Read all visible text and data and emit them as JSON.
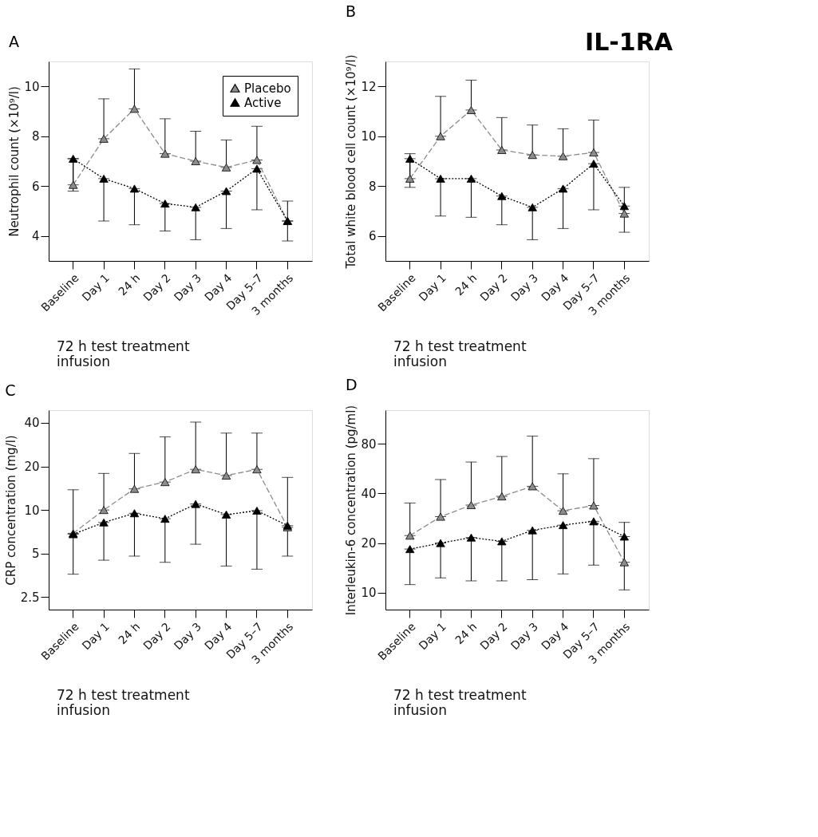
{
  "chart_data": [
    {
      "type": "line",
      "title": "A",
      "ylabel": "Neutrophil count (×10⁹/l)",
      "categories": [
        "Baseline",
        "Day 1",
        "24 h",
        "Day 2",
        "Day 3",
        "Day 4",
        "Day 5–7",
        "3 months"
      ],
      "ylim": [
        3,
        11
      ],
      "yticks": [
        4,
        6,
        8,
        10
      ],
      "legend": "top right",
      "marker": "triangle",
      "series": [
        {
          "name": "Placebo",
          "color": "#8c8c8c",
          "line_style": "dashed",
          "values": [
            6.05,
            7.9,
            9.1,
            7.3,
            7.0,
            6.75,
            7.05,
            4.6
          ],
          "errors": [
            [
              6.05,
              7.1
            ],
            [
              7.9,
              9.5
            ],
            [
              9.1,
              10.7
            ],
            [
              7.3,
              8.7
            ],
            [
              7.0,
              8.2
            ],
            [
              6.75,
              7.85
            ],
            [
              7.05,
              8.4
            ],
            [
              4.6,
              5.4
            ]
          ]
        },
        {
          "name": "Active",
          "color": "#000000",
          "line_style": "dotted",
          "values": [
            7.1,
            6.3,
            5.9,
            5.3,
            5.15,
            5.8,
            6.7,
            4.6
          ],
          "errors": [
            [
              5.8,
              7.1
            ],
            [
              4.6,
              6.3
            ],
            [
              4.45,
              5.9
            ],
            [
              4.2,
              5.3
            ],
            [
              3.85,
              5.15
            ],
            [
              4.3,
              5.8
            ],
            [
              5.05,
              6.7
            ],
            [
              3.8,
              4.6
            ]
          ]
        }
      ],
      "annotations": [
        "72 h test treatment\ninfusion"
      ]
    },
    {
      "type": "line",
      "title": "B",
      "ylabel": "Total white blood cell count (×10⁹/l)",
      "annotations": [
        "72 h test treatment\ninfusion",
        "IL-1RA"
      ],
      "categories": [
        "Baseline",
        "Day 1",
        "24 h",
        "Day 2",
        "Day 3",
        "Day 4",
        "Day 5–7",
        "3 months"
      ],
      "ylim": [
        5,
        13
      ],
      "yticks": [
        6,
        8,
        10,
        12
      ],
      "marker": "triangle",
      "series": [
        {
          "color": "#8c8c8c",
          "line_style": "dashed",
          "values": [
            8.3,
            10.0,
            11.05,
            9.45,
            9.25,
            9.2,
            9.35,
            6.9
          ],
          "errors": [
            [
              8.3,
              9.3
            ],
            [
              10.0,
              11.6
            ],
            [
              11.05,
              12.25
            ],
            [
              9.45,
              10.75
            ],
            [
              9.25,
              10.45
            ],
            [
              9.2,
              10.3
            ],
            [
              9.35,
              10.65
            ],
            [
              6.9,
              7.95
            ]
          ]
        },
        {
          "color": "#000000",
          "line_style": "dotted",
          "values": [
            9.1,
            8.3,
            8.3,
            7.6,
            7.15,
            7.9,
            8.9,
            7.2
          ],
          "errors": [
            [
              7.95,
              9.1
            ],
            [
              6.8,
              8.3
            ],
            [
              6.75,
              8.3
            ],
            [
              6.45,
              7.6
            ],
            [
              5.85,
              7.15
            ],
            [
              6.3,
              7.9
            ],
            [
              7.05,
              8.9
            ],
            [
              6.15,
              7.2
            ]
          ]
        }
      ]
    },
    {
      "type": "line",
      "title": "C",
      "ylabel": "CRP concentration (mg/l)",
      "categories": [
        "Baseline",
        "Day 1",
        "24 h",
        "Day 2",
        "Day 3",
        "Day 4",
        "Day 5–7",
        "3 months"
      ],
      "log": "y",
      "ylim": [
        2.05,
        49
      ],
      "yticks": [
        2.5,
        5,
        10,
        20,
        40
      ],
      "marker": "triangle",
      "series": [
        {
          "color": "#8c8c8c",
          "line_style": "dashed",
          "values": [
            6.9,
            10,
            14,
            15.6,
            19.1,
            17.3,
            19.1,
            7.6
          ],
          "errors": [
            [
              6.9,
              13.8
            ],
            [
              10,
              17.9
            ],
            [
              14,
              24.6
            ],
            [
              15.6,
              32
            ],
            [
              19.1,
              40.5
            ],
            [
              17.3,
              34
            ],
            [
              19.1,
              34
            ],
            [
              7.6,
              16.8
            ]
          ]
        },
        {
          "color": "#000000",
          "line_style": "dotted",
          "values": [
            6.8,
            8.2,
            9.5,
            8.7,
            11,
            9.3,
            9.9,
            7.8
          ],
          "errors": [
            [
              3.6,
              6.8
            ],
            [
              4.5,
              8.2
            ],
            [
              4.8,
              9.5
            ],
            [
              4.35,
              8.7
            ],
            [
              5.8,
              11
            ],
            [
              4.1,
              9.3
            ],
            [
              3.9,
              9.9
            ],
            [
              4.8,
              7.8
            ]
          ]
        }
      ],
      "annotations": [
        "72 h test treatment\ninfusion"
      ]
    },
    {
      "type": "line",
      "title": "D",
      "ylabel": "Interleukin-6 concentration (pg/ml)",
      "categories": [
        "Baseline",
        "Day 1",
        "24 h",
        "Day 2",
        "Day 3",
        "Day 4",
        "Day 5–7",
        "3 months"
      ],
      "log": "y",
      "ylim": [
        7.9,
        128
      ],
      "yticks": [
        10,
        20,
        40,
        80
      ],
      "marker": "triangle",
      "series": [
        {
          "color": "#8c8c8c",
          "line_style": "dashed",
          "values": [
            22.2,
            28.9,
            34,
            38.4,
            44.2,
            31.4,
            33.8,
            15.3
          ],
          "errors": [
            [
              22.2,
              35
            ],
            [
              28.9,
              48.5
            ],
            [
              34,
              62
            ],
            [
              38.4,
              67
            ],
            [
              44.2,
              89
            ],
            [
              31.4,
              52.6
            ],
            [
              33.8,
              65
            ],
            [
              15.3,
              26.7
            ]
          ]
        },
        {
          "color": "#000000",
          "line_style": "dotted",
          "values": [
            18.4,
            20,
            21.6,
            20.5,
            23.9,
            25.7,
            27.1,
            21.9
          ],
          "errors": [
            [
              11.2,
              18.4
            ],
            [
              12.3,
              20
            ],
            [
              11.8,
              21.6
            ],
            [
              11.8,
              20.5
            ],
            [
              12.0,
              23.9
            ],
            [
              13,
              25.7
            ],
            [
              14.7,
              27.1
            ],
            [
              10.4,
              21.9
            ]
          ]
        }
      ],
      "annotations": [
        "72 h test treatment\ninfusion"
      ]
    }
  ]
}
